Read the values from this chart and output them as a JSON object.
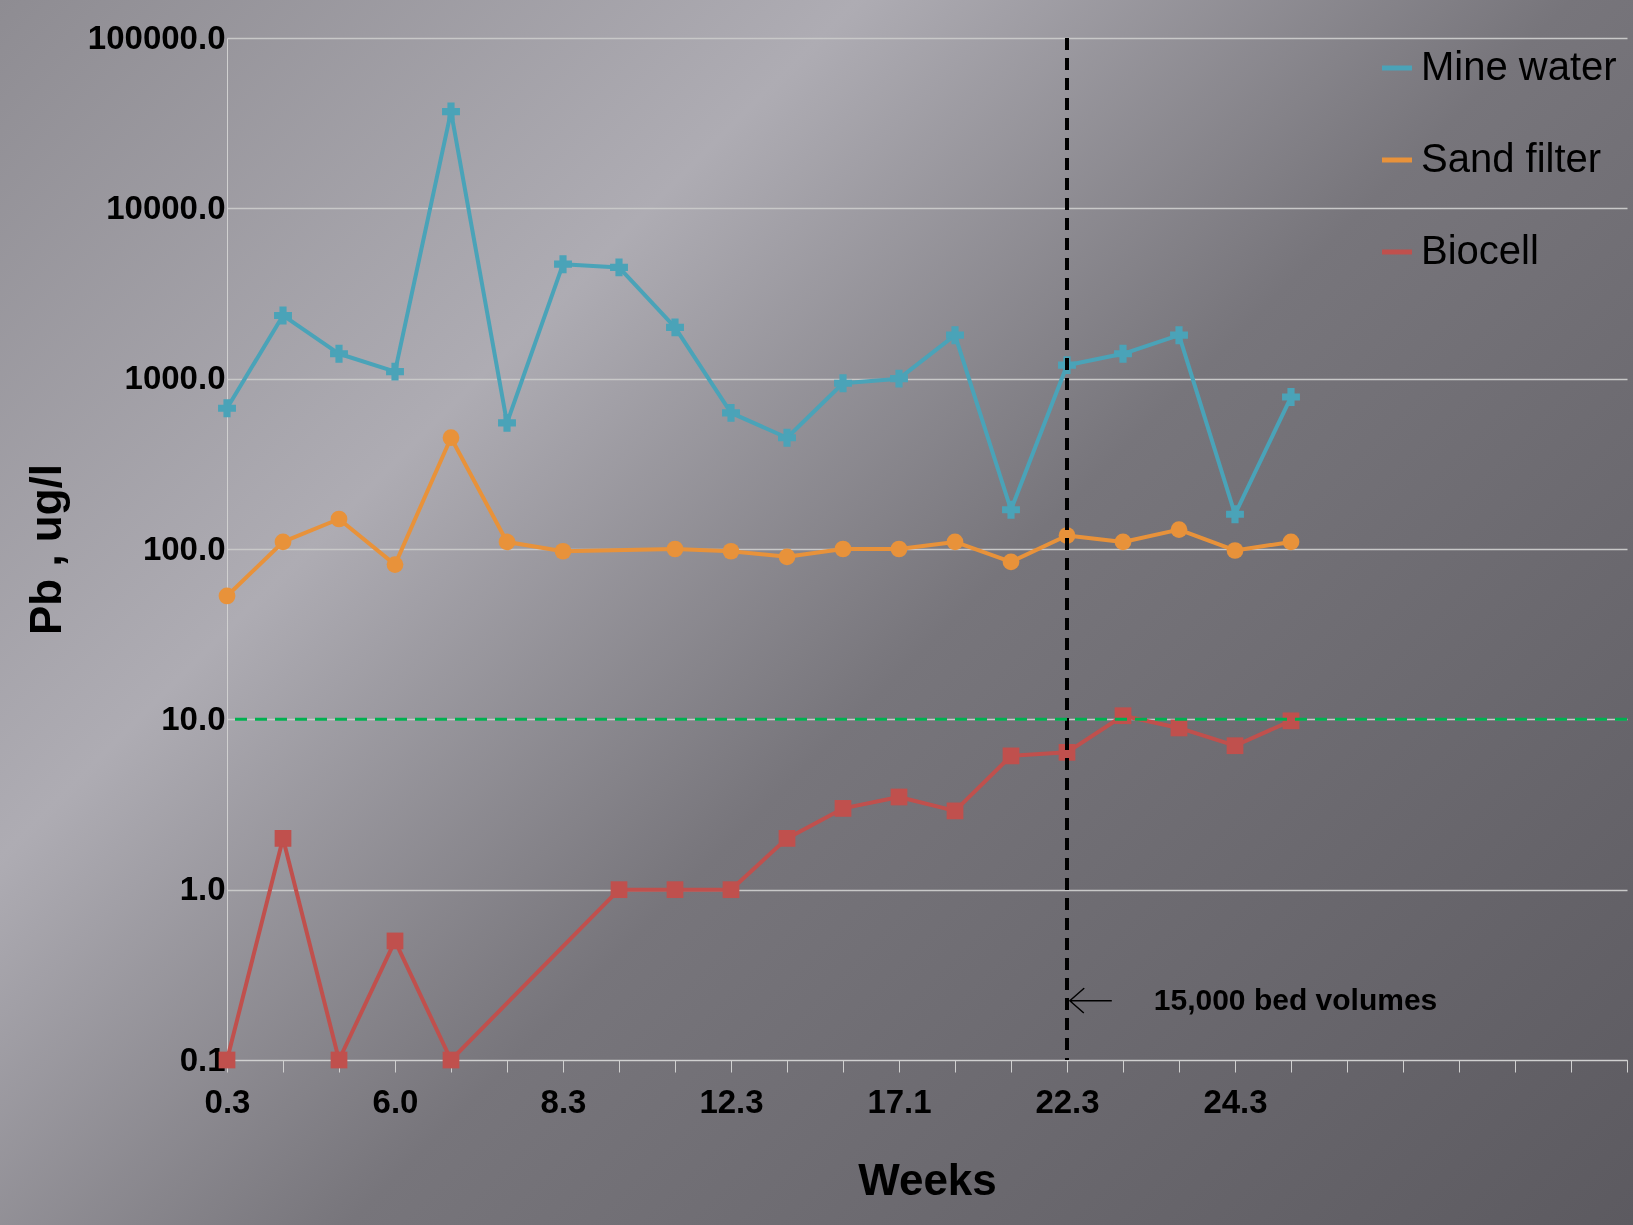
{
  "chart_data": {
    "type": "line",
    "xlabel": "Weeks",
    "ylabel": "Pb , ug/l",
    "categories": [
      "0.3",
      null,
      null,
      "6.0",
      null,
      null,
      "8.3",
      null,
      null,
      "12.3",
      null,
      null,
      "17.1",
      null,
      null,
      "22.3",
      null,
      null,
      "24.3",
      null,
      null,
      null,
      null,
      null,
      null,
      null
    ],
    "series": [
      {
        "name": "Mine water",
        "color": "#4aa3b8",
        "marker": "cross",
        "values": [
          670,
          2350,
          1400,
          1100,
          37000,
          550,
          4700,
          4500,
          2000,
          630,
          450,
          940,
          1000,
          1800,
          170,
          1200,
          1400,
          1800,
          160,
          780,
          null,
          null,
          null,
          null,
          null,
          null
        ]
      },
      {
        "name": "Sand filter",
        "color": "#e8923a",
        "marker": "circle",
        "values": [
          53,
          110,
          150,
          81,
          450,
          110,
          97,
          null,
          100,
          97,
          90,
          100,
          100,
          110,
          84,
          120,
          110,
          130,
          98,
          110,
          null,
          null,
          null,
          null,
          null,
          null
        ]
      },
      {
        "name": "Biocell",
        "color": "#c0504d",
        "marker": "square",
        "values": [
          0.1,
          2.0,
          0.1,
          0.5,
          0.1,
          null,
          null,
          1.0,
          1.0,
          1.0,
          2.0,
          3.0,
          3.5,
          2.9,
          6.1,
          6.4,
          10.5,
          8.9,
          7.0,
          9.8,
          null,
          null,
          null,
          null,
          null,
          null
        ]
      }
    ],
    "log": true,
    "ylim": [
      0.1,
      100000
    ],
    "yticks": [
      {
        "value": 0.1,
        "label": "0.1"
      },
      {
        "value": 1,
        "label": "1.0"
      },
      {
        "value": 10,
        "label": "10.0"
      },
      {
        "value": 100,
        "label": "100.0"
      },
      {
        "value": 1000,
        "label": "1000.0"
      },
      {
        "value": 10000,
        "label": "10000.0"
      },
      {
        "value": 100000,
        "label": "100000.0"
      }
    ],
    "ref_lines": [
      {
        "axis": "x",
        "value": "22.3",
        "label": "15,000 bed volumes",
        "color": "#000000",
        "line_style": "dashed"
      },
      {
        "axis": "y",
        "value": 10,
        "color": "#00b050",
        "line_style": "dashed"
      }
    ],
    "grid": "y",
    "legend": "top right",
    "line_style": "solid"
  }
}
